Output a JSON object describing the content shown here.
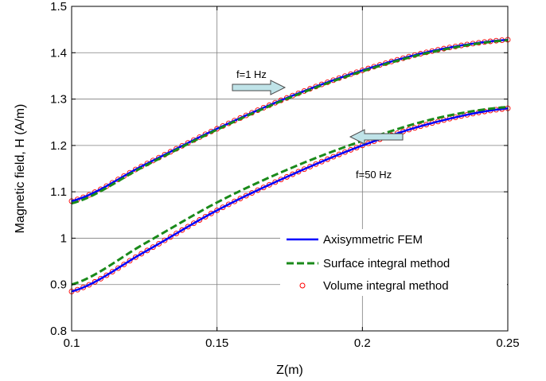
{
  "chart_data": {
    "type": "line",
    "xlabel": "Z(m)",
    "ylabel": "Magnetic field, H (A/m)",
    "xlim": [
      0.1,
      0.25
    ],
    "ylim": [
      0.8,
      1.5
    ],
    "xticks": [
      0.1,
      0.15,
      0.2,
      0.25
    ],
    "xtick_labels": [
      "0.1",
      "0.15",
      "0.2",
      "0.25"
    ],
    "yticks": [
      0.8,
      0.9,
      1.0,
      1.1,
      1.2,
      1.3,
      1.4,
      1.5
    ],
    "ytick_labels": [
      "0.8",
      "0.9",
      "1",
      "1.1",
      "1.2",
      "1.3",
      "1.4",
      "1.5"
    ],
    "grid": true,
    "legend_position": "bottom-right",
    "x": [
      0.1,
      0.125,
      0.15,
      0.175,
      0.2,
      0.225,
      0.25
    ],
    "series": [
      {
        "name": "Axisymmetric FEM",
        "style": "solid",
        "color": "#0000ff",
        "groups": [
          [
            1.08,
            1.158,
            1.236,
            1.305,
            1.362,
            1.405,
            1.428
          ],
          [
            0.885,
            0.97,
            1.06,
            1.135,
            1.2,
            1.25,
            1.28
          ]
        ]
      },
      {
        "name": "Surface integral method",
        "style": "dashed",
        "color": "#1a8a1a",
        "groups": [
          [
            1.075,
            1.155,
            1.234,
            1.303,
            1.36,
            1.403,
            1.427
          ],
          [
            0.9,
            0.988,
            1.077,
            1.15,
            1.21,
            1.258,
            1.283
          ]
        ]
      },
      {
        "name": "Volume integral method",
        "style": "circle-markers",
        "color": "#ff0000",
        "groups": [
          [
            1.08,
            1.158,
            1.236,
            1.305,
            1.362,
            1.405,
            1.428
          ],
          [
            0.885,
            0.97,
            1.06,
            1.135,
            1.2,
            1.25,
            1.28
          ]
        ]
      }
    ],
    "annotations": [
      {
        "text": "f=1 Hz",
        "arrow_direction": "right"
      },
      {
        "text": "f=50 Hz",
        "arrow_direction": "left"
      }
    ],
    "arrow_color": "#bfe3e8"
  }
}
